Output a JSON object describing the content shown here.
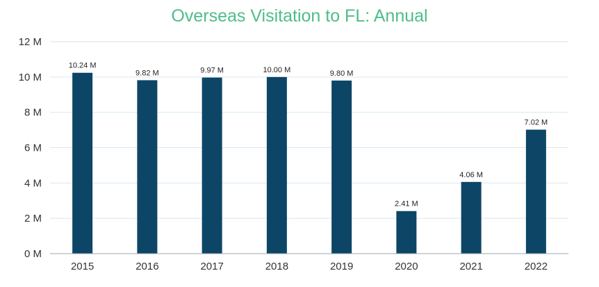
{
  "chart_data": {
    "type": "bar",
    "title": "Overseas Visitation to FL: Annual",
    "categories": [
      "2015",
      "2016",
      "2017",
      "2018",
      "2019",
      "2020",
      "2021",
      "2022"
    ],
    "values": [
      10.24,
      9.82,
      9.97,
      10.0,
      9.8,
      2.41,
      4.06,
      7.02
    ],
    "data_labels": [
      "10.24 M",
      "9.82 M",
      "9.97 M",
      "10.00 M",
      "9.80 M",
      "2.41 M",
      "4.06 M",
      "7.02 M"
    ],
    "yticks": [
      0,
      2,
      4,
      6,
      8,
      10,
      12
    ],
    "ytick_labels": [
      "0 M",
      "2 M",
      "4 M",
      "6 M",
      "8 M",
      "10 M",
      "12 M"
    ],
    "ylim": [
      0,
      12
    ],
    "xlabel": "",
    "ylabel": "",
    "grid": true,
    "legend": "none",
    "colors": {
      "bar": "#0d4566",
      "title": "#4dbd8a",
      "grid": "#d6e6f2",
      "axis": "#333333"
    }
  }
}
